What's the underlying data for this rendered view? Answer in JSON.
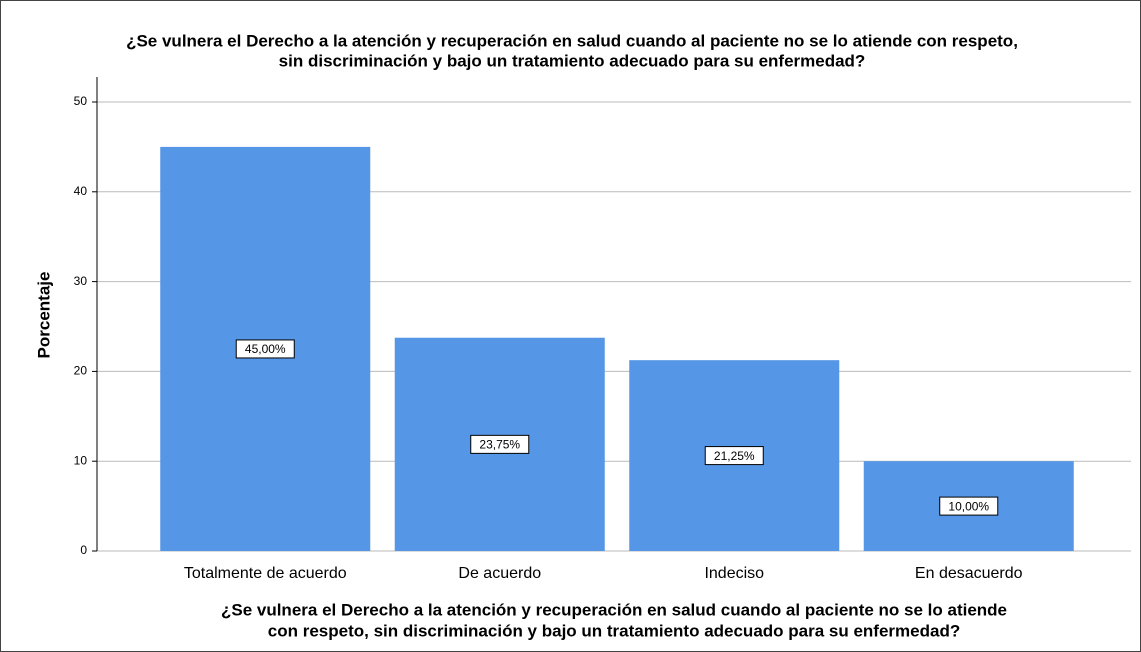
{
  "chart_data": {
    "type": "bar",
    "title": [
      "¿Se vulnera el Derecho a la atención y recuperación en salud cuando al paciente no se lo atiende con respeto,",
      "sin discriminación y bajo un tratamiento adecuado para su enfermedad?"
    ],
    "x_label": [
      "¿Se vulnera el Derecho a la atención y recuperación en salud cuando al paciente no se lo atiende",
      "con respeto, sin discriminación y bajo un tratamiento adecuado para su enfermedad?"
    ],
    "y_label": "Porcentaje",
    "categories": [
      "Totalmente de acuerdo",
      "De acuerdo",
      "Indeciso",
      "En desacuerdo"
    ],
    "values": [
      45.0,
      23.75,
      21.25,
      10.0
    ],
    "value_labels": [
      "45,00%",
      "23,75%",
      "21,25%",
      "10,00%"
    ],
    "color": "#5596e6",
    "ylim": [
      0,
      50
    ],
    "yticks": [
      0,
      10,
      20,
      30,
      40,
      50
    ],
    "grid": true
  }
}
